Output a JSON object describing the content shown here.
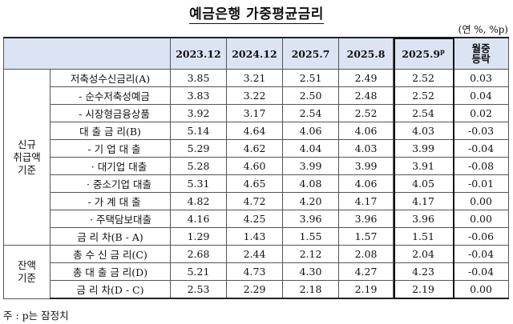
{
  "title": "예금은행 가중평균금리",
  "unit": "(연 %, %p)",
  "columns": [
    "2023.12",
    "2024.12",
    "2025.7",
    "2025.8",
    "2025.9",
    "월중 등락"
  ],
  "preliminary_mark": "p",
  "change_header_lines": [
    "월중",
    "등락"
  ],
  "groups": [
    {
      "name_lines": [
        "신규",
        "취급액",
        "기준"
      ],
      "rows": [
        {
          "label": "저축성수신금리(A)",
          "values": [
            "3.85",
            "3.21",
            "2.51",
            "2.49",
            "2.52",
            "0.03"
          ]
        },
        {
          "label": "- 순수저축성예금",
          "values": [
            "3.83",
            "3.22",
            "2.50",
            "2.48",
            "2.52",
            "0.04"
          ]
        },
        {
          "label": "- 시장형금융상품",
          "values": [
            "3.92",
            "3.17",
            "2.54",
            "2.52",
            "2.54",
            "0.02"
          ]
        },
        {
          "label": "대 출 금 리(B)",
          "values": [
            "5.14",
            "4.64",
            "4.06",
            "4.06",
            "4.03",
            "-0.03"
          ]
        },
        {
          "label": "- 기 업 대 출",
          "values": [
            "5.29",
            "4.62",
            "4.04",
            "4.03",
            "3.99",
            "-0.04"
          ]
        },
        {
          "label": "· 대기업 대출",
          "values": [
            "5.28",
            "4.60",
            "3.99",
            "3.99",
            "3.91",
            "-0.08"
          ]
        },
        {
          "label": "· 중소기업 대출",
          "values": [
            "5.31",
            "4.65",
            "4.08",
            "4.06",
            "4.05",
            "-0.01"
          ]
        },
        {
          "label": "- 가 계 대 출",
          "values": [
            "4.82",
            "4.72",
            "4.20",
            "4.17",
            "4.17",
            "0.00"
          ]
        },
        {
          "label": "· 주택담보대출",
          "values": [
            "4.16",
            "4.25",
            "3.96",
            "3.96",
            "3.96",
            "0.00"
          ]
        },
        {
          "label": "금 리 차(B - A)",
          "values": [
            "1.29",
            "1.43",
            "1.55",
            "1.57",
            "1.51",
            "-0.06"
          ]
        }
      ]
    },
    {
      "name_lines": [
        "잔액",
        "기준"
      ],
      "rows": [
        {
          "label": "총 수 신 금 리(C)",
          "values": [
            "2.68",
            "2.44",
            "2.12",
            "2.08",
            "2.04",
            "-0.04"
          ]
        },
        {
          "label": "총 대 출 금 리(D)",
          "values": [
            "5.21",
            "4.73",
            "4.30",
            "4.27",
            "4.23",
            "-0.04"
          ]
        },
        {
          "label": "금 리 차(D - C)",
          "values": [
            "2.53",
            "2.29",
            "2.18",
            "2.19",
            "2.19",
            "0.00"
          ]
        }
      ]
    }
  ],
  "note": "주 : p는 잠정치"
}
